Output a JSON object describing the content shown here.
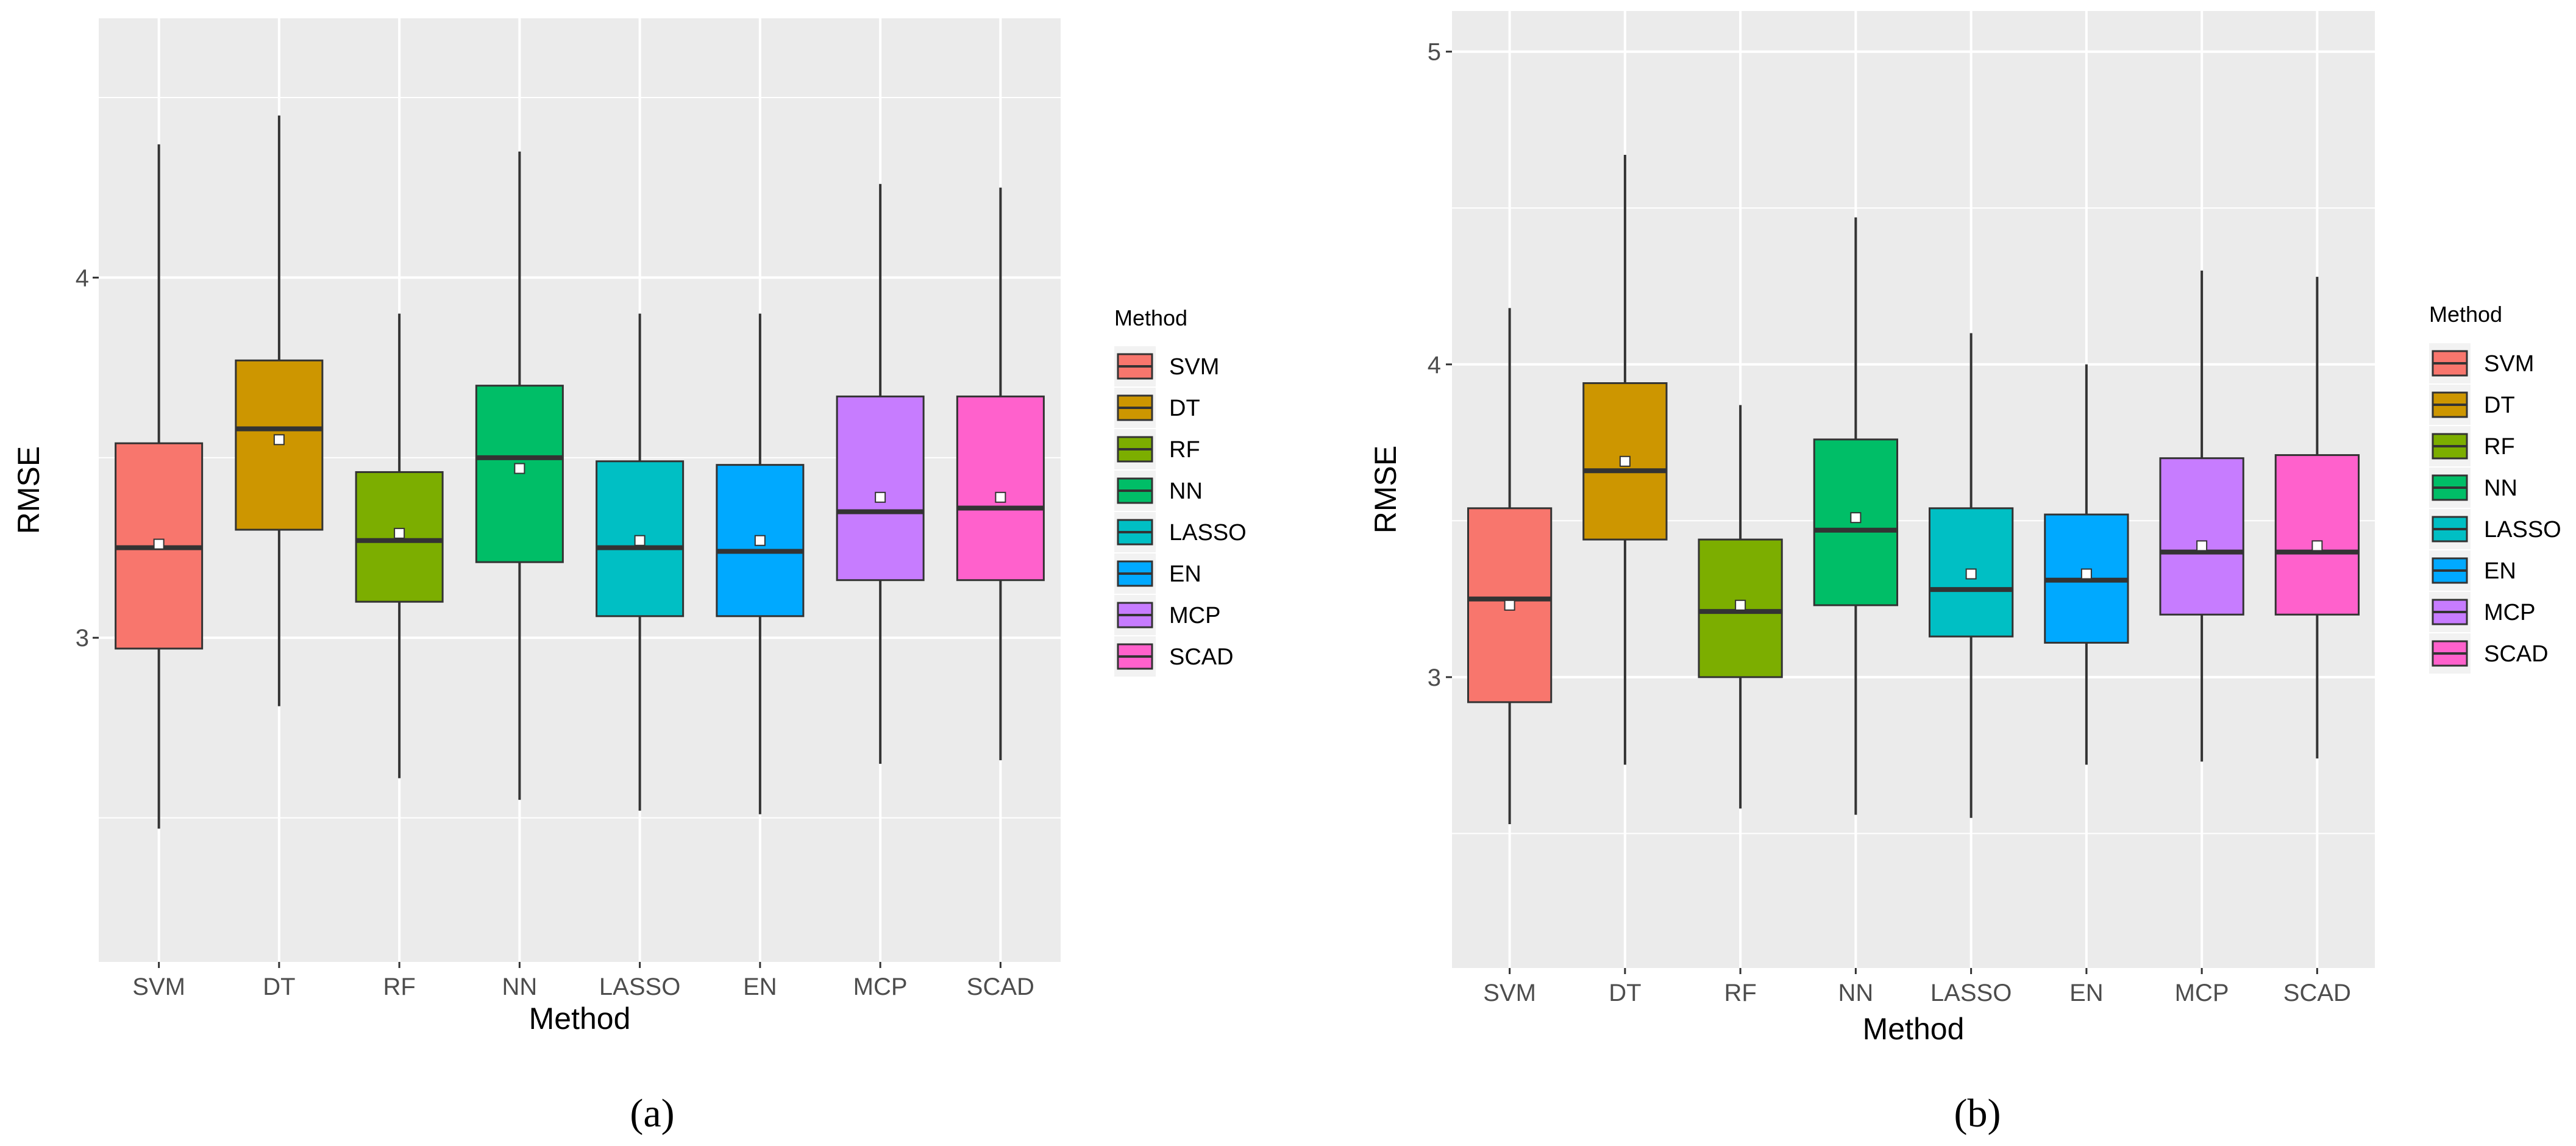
{
  "legend": {
    "title": "Method"
  },
  "colors": {
    "SVM": "#F8766D",
    "DT": "#CD9600",
    "RF": "#7CAE00",
    "NN": "#00BE67",
    "LASSO": "#00BFC4",
    "EN": "#00A9FF",
    "MCP": "#C77CFF",
    "SCAD": "#FF61CC"
  },
  "chart_data": [
    {
      "type": "boxplot",
      "panel_label": "(a)",
      "xlabel": "Method",
      "ylabel": "RMSE",
      "ylim": [
        2.1,
        4.72
      ],
      "yticks": [
        3,
        4
      ],
      "grid": true,
      "legend_position": "right",
      "categories": [
        "SVM",
        "DT",
        "RF",
        "NN",
        "LASSO",
        "EN",
        "MCP",
        "SCAD"
      ],
      "boxes": [
        {
          "method": "SVM",
          "min": 2.47,
          "q1": 2.97,
          "median": 3.25,
          "q3": 3.54,
          "max": 4.37,
          "mean": 3.26
        },
        {
          "method": "DT",
          "min": 2.81,
          "q1": 3.3,
          "median": 3.58,
          "q3": 3.77,
          "max": 4.45,
          "mean": 3.55
        },
        {
          "method": "RF",
          "min": 2.61,
          "q1": 3.1,
          "median": 3.27,
          "q3": 3.46,
          "max": 3.9,
          "mean": 3.29
        },
        {
          "method": "NN",
          "min": 2.55,
          "q1": 3.21,
          "median": 3.5,
          "q3": 3.7,
          "max": 4.35,
          "mean": 3.47
        },
        {
          "method": "LASSO",
          "min": 2.52,
          "q1": 3.06,
          "median": 3.25,
          "q3": 3.49,
          "max": 3.9,
          "mean": 3.27
        },
        {
          "method": "EN",
          "min": 2.51,
          "q1": 3.06,
          "median": 3.24,
          "q3": 3.48,
          "max": 3.9,
          "mean": 3.27
        },
        {
          "method": "MCP",
          "min": 2.65,
          "q1": 3.16,
          "median": 3.35,
          "q3": 3.67,
          "max": 4.26,
          "mean": 3.39
        },
        {
          "method": "SCAD",
          "min": 2.66,
          "q1": 3.16,
          "median": 3.36,
          "q3": 3.67,
          "max": 4.25,
          "mean": 3.39
        }
      ]
    },
    {
      "type": "boxplot",
      "panel_label": "(b)",
      "xlabel": "Method",
      "ylabel": "RMSE",
      "ylim": [
        2.07,
        5.13
      ],
      "yticks": [
        3,
        4,
        5
      ],
      "grid": true,
      "legend_position": "right",
      "categories": [
        "SVM",
        "DT",
        "RF",
        "NN",
        "LASSO",
        "EN",
        "MCP",
        "SCAD"
      ],
      "boxes": [
        {
          "method": "SVM",
          "min": 2.53,
          "q1": 2.92,
          "median": 3.25,
          "q3": 3.54,
          "max": 4.18,
          "mean": 3.23
        },
        {
          "method": "DT",
          "min": 2.72,
          "q1": 3.44,
          "median": 3.66,
          "q3": 3.94,
          "max": 4.67,
          "mean": 3.69
        },
        {
          "method": "RF",
          "min": 2.58,
          "q1": 3.0,
          "median": 3.21,
          "q3": 3.44,
          "max": 3.87,
          "mean": 3.23
        },
        {
          "method": "NN",
          "min": 2.56,
          "q1": 3.23,
          "median": 3.47,
          "q3": 3.76,
          "max": 4.47,
          "mean": 3.51
        },
        {
          "method": "LASSO",
          "min": 2.55,
          "q1": 3.13,
          "median": 3.28,
          "q3": 3.54,
          "max": 4.1,
          "mean": 3.33
        },
        {
          "method": "EN",
          "min": 2.72,
          "q1": 3.11,
          "median": 3.31,
          "q3": 3.52,
          "max": 4.0,
          "mean": 3.33
        },
        {
          "method": "MCP",
          "min": 2.73,
          "q1": 3.2,
          "median": 3.4,
          "q3": 3.7,
          "max": 4.3,
          "mean": 3.42
        },
        {
          "method": "SCAD",
          "min": 2.74,
          "q1": 3.2,
          "median": 3.4,
          "q3": 3.71,
          "max": 4.28,
          "mean": 3.42
        }
      ]
    }
  ]
}
